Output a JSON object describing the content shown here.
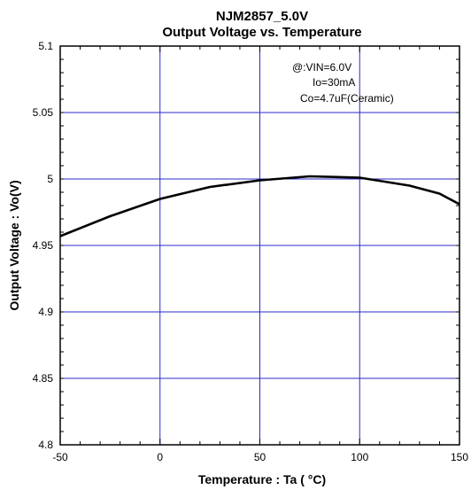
{
  "chart_data": {
    "type": "line",
    "title": "NJM2857_5.0V",
    "subtitle": "Output Voltage vs. Temperature",
    "xlabel": "Temperature : Ta ( °C)",
    "ylabel": "Output Voltage : Vo(V)",
    "xlim": [
      -50,
      150
    ],
    "ylim": [
      4.8,
      5.1
    ],
    "x_ticks": [
      "-50",
      "0",
      "50",
      "100",
      "150"
    ],
    "y_ticks": [
      "4.8",
      "4.85",
      "4.9",
      "4.95",
      "5",
      "5.05",
      "5.1"
    ],
    "grid": true,
    "annotations": [
      "@:VIN=6.0V",
      "Io=30mA",
      "Co=4.7uF(Ceramic)"
    ],
    "series": [
      {
        "x": [
          -50,
          -25,
          0,
          25,
          50,
          75,
          100,
          125,
          140,
          150
        ],
        "y": [
          4.957,
          4.972,
          4.985,
          4.994,
          4.999,
          5.002,
          5.001,
          4.995,
          4.989,
          4.981
        ]
      }
    ],
    "colors": {
      "grid": "#2b2bc8",
      "line": "#000000",
      "frame": "#000000"
    }
  }
}
